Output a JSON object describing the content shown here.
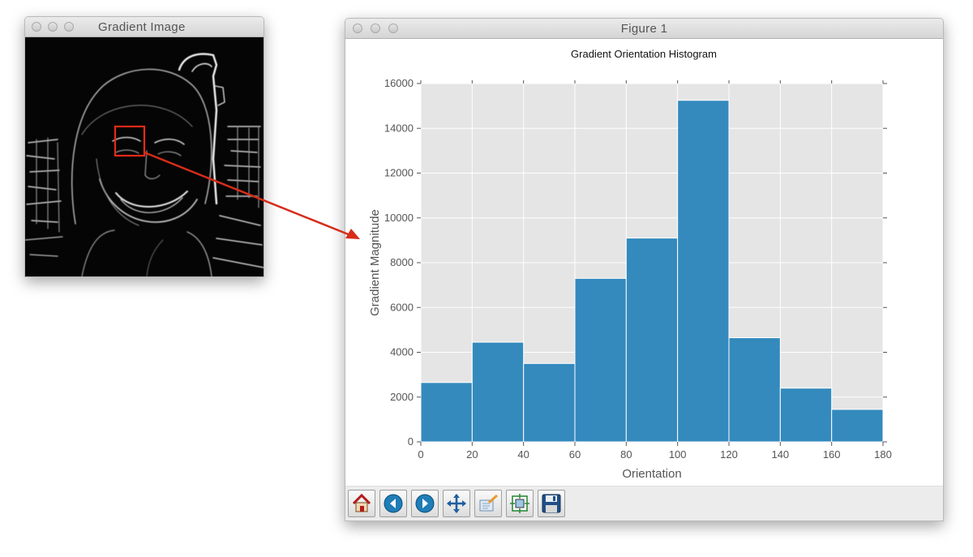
{
  "gradient_window": {
    "title": "Gradient Image"
  },
  "figure_window": {
    "title": "Figure 1",
    "toolbar": [
      {
        "icon": "home-icon",
        "tooltip": "Reset original view"
      },
      {
        "icon": "back-arrow-icon",
        "tooltip": "Back to previous view"
      },
      {
        "icon": "forward-arrow-icon",
        "tooltip": "Forward to next view"
      },
      {
        "icon": "pan-move-icon",
        "tooltip": "Pan axes"
      },
      {
        "icon": "zoom-rect-icon",
        "tooltip": "Zoom to rectangle"
      },
      {
        "icon": "subplots-config-icon",
        "tooltip": "Configure subplots"
      },
      {
        "icon": "save-floppy-icon",
        "tooltip": "Save the figure"
      }
    ]
  },
  "colors": {
    "bar": "#348abd",
    "plot_bg": "#e5e5e5",
    "grid": "#ffffff",
    "highlight_box": "#e8291a",
    "arrow": "#d62c1a"
  },
  "chart_data": {
    "type": "bar",
    "title": "Gradient Orientation Histogram",
    "xlabel": "Orientation",
    "ylabel": "Gradient Magnitude",
    "bin_edges": [
      0,
      20,
      40,
      60,
      80,
      100,
      120,
      140,
      160,
      180
    ],
    "values": [
      2650,
      4450,
      3500,
      7300,
      9100,
      15250,
      4650,
      2400,
      1450
    ],
    "xlim": [
      0,
      180
    ],
    "ylim": [
      0,
      16000
    ],
    "xticks": [
      0,
      20,
      40,
      60,
      80,
      100,
      120,
      140,
      160,
      180
    ],
    "yticks": [
      0,
      2000,
      4000,
      6000,
      8000,
      10000,
      12000,
      14000,
      16000
    ],
    "grid": true
  }
}
